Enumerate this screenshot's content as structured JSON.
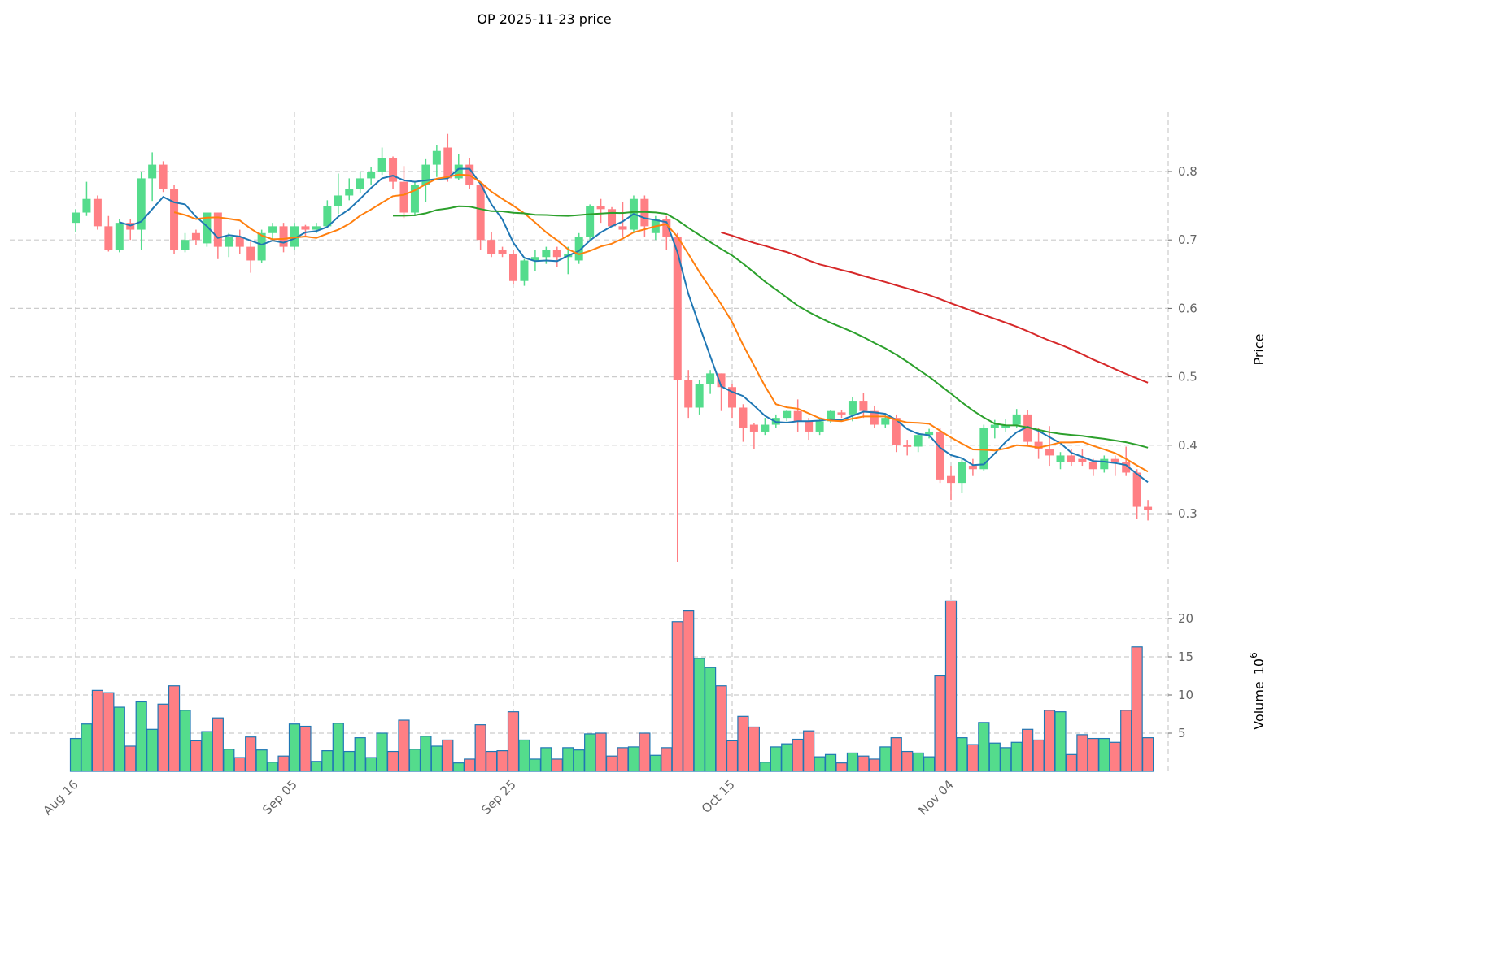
{
  "chart_data": {
    "type": "candlestick",
    "title": "OP  2025-11-23  price",
    "ylabel_price": "Price",
    "ylabel_volume": "Volume",
    "volume_exponent": "6",
    "price_ticks": [
      0.3,
      0.4,
      0.5,
      0.6,
      0.7,
      0.8
    ],
    "volume_ticks": [
      5,
      10,
      15,
      20
    ],
    "x_ticks": [
      {
        "index": 0,
        "label": "Aug 16"
      },
      {
        "index": 20,
        "label": "Sep 05"
      },
      {
        "index": 40,
        "label": "Sep 25"
      },
      {
        "index": 60,
        "label": "Oct 15"
      },
      {
        "index": 80,
        "label": "Nov 04"
      }
    ],
    "colors": {
      "up": "#54dc8c",
      "down": "#ff7f84",
      "vol_edge": "#1f77b4",
      "ma": [
        "#1f77b4",
        "#ff7f0e",
        "#2ca02c",
        "#d62728"
      ]
    },
    "ma_periods": [
      5,
      10,
      30,
      60
    ],
    "open": [
      0.725,
      0.74,
      0.76,
      0.72,
      0.685,
      0.725,
      0.715,
      0.79,
      0.81,
      0.775,
      0.685,
      0.71,
      0.695,
      0.74,
      0.69,
      0.705,
      0.69,
      0.67,
      0.71,
      0.72,
      0.69,
      0.72,
      0.715,
      0.72,
      0.75,
      0.765,
      0.775,
      0.79,
      0.8,
      0.82,
      0.785,
      0.74,
      0.78,
      0.81,
      0.835,
      0.79,
      0.81,
      0.78,
      0.7,
      0.685,
      0.68,
      0.64,
      0.67,
      0.675,
      0.685,
      0.675,
      0.67,
      0.705,
      0.75,
      0.745,
      0.72,
      0.715,
      0.76,
      0.71,
      0.73,
      0.705,
      0.495,
      0.455,
      0.49,
      0.505,
      0.485,
      0.455,
      0.43,
      0.42,
      0.43,
      0.44,
      0.45,
      0.435,
      0.42,
      0.435,
      0.448,
      0.445,
      0.465,
      0.45,
      0.43,
      0.44,
      0.4,
      0.398,
      0.415,
      0.42,
      0.355,
      0.345,
      0.37,
      0.365,
      0.425,
      0.425,
      0.43,
      0.445,
      0.405,
      0.395,
      0.375,
      0.385,
      0.38,
      0.375,
      0.365,
      0.38,
      0.375,
      0.36,
      0.31
    ],
    "high": [
      0.745,
      0.785,
      0.765,
      0.735,
      0.73,
      0.73,
      0.8,
      0.828,
      0.815,
      0.78,
      0.71,
      0.715,
      0.74,
      0.74,
      0.71,
      0.715,
      0.7,
      0.715,
      0.725,
      0.725,
      0.725,
      0.722,
      0.725,
      0.758,
      0.797,
      0.79,
      0.8,
      0.807,
      0.835,
      0.822,
      0.808,
      0.785,
      0.818,
      0.838,
      0.855,
      0.825,
      0.82,
      0.785,
      0.712,
      0.69,
      0.685,
      0.672,
      0.685,
      0.69,
      0.69,
      0.69,
      0.71,
      0.752,
      0.76,
      0.748,
      0.755,
      0.765,
      0.765,
      0.735,
      0.735,
      0.71,
      0.51,
      0.495,
      0.51,
      0.505,
      0.49,
      0.46,
      0.432,
      0.44,
      0.445,
      0.452,
      0.467,
      0.44,
      0.44,
      0.452,
      0.452,
      0.47,
      0.476,
      0.458,
      0.445,
      0.445,
      0.408,
      0.42,
      0.424,
      0.425,
      0.37,
      0.38,
      0.38,
      0.43,
      0.437,
      0.438,
      0.453,
      0.452,
      0.425,
      0.428,
      0.39,
      0.395,
      0.395,
      0.38,
      0.385,
      0.385,
      0.398,
      0.365,
      0.32
    ],
    "low": [
      0.712,
      0.735,
      0.715,
      0.683,
      0.682,
      0.7,
      0.685,
      0.757,
      0.77,
      0.68,
      0.682,
      0.692,
      0.69,
      0.672,
      0.675,
      0.68,
      0.652,
      0.667,
      0.7,
      0.682,
      0.685,
      0.705,
      0.71,
      0.717,
      0.738,
      0.758,
      0.768,
      0.78,
      0.795,
      0.775,
      0.732,
      0.735,
      0.755,
      0.792,
      0.785,
      0.788,
      0.775,
      0.685,
      0.675,
      0.675,
      0.635,
      0.633,
      0.655,
      0.665,
      0.66,
      0.65,
      0.665,
      0.7,
      0.725,
      0.72,
      0.705,
      0.712,
      0.705,
      0.7,
      0.685,
      0.23,
      0.44,
      0.445,
      0.475,
      0.45,
      0.44,
      0.405,
      0.395,
      0.415,
      0.425,
      0.435,
      0.42,
      0.408,
      0.415,
      0.432,
      0.44,
      0.435,
      0.44,
      0.425,
      0.425,
      0.39,
      0.385,
      0.39,
      0.41,
      0.345,
      0.32,
      0.33,
      0.355,
      0.362,
      0.41,
      0.42,
      0.425,
      0.4,
      0.38,
      0.37,
      0.365,
      0.37,
      0.37,
      0.355,
      0.36,
      0.355,
      0.355,
      0.292,
      0.29
    ],
    "close": [
      0.74,
      0.76,
      0.72,
      0.685,
      0.725,
      0.715,
      0.79,
      0.81,
      0.775,
      0.685,
      0.7,
      0.7,
      0.74,
      0.69,
      0.705,
      0.69,
      0.67,
      0.71,
      0.72,
      0.69,
      0.72,
      0.715,
      0.72,
      0.75,
      0.765,
      0.775,
      0.79,
      0.8,
      0.82,
      0.785,
      0.74,
      0.78,
      0.81,
      0.83,
      0.79,
      0.81,
      0.78,
      0.7,
      0.68,
      0.68,
      0.64,
      0.67,
      0.675,
      0.685,
      0.675,
      0.68,
      0.705,
      0.75,
      0.745,
      0.72,
      0.715,
      0.76,
      0.72,
      0.73,
      0.705,
      0.495,
      0.455,
      0.49,
      0.505,
      0.485,
      0.455,
      0.425,
      0.42,
      0.43,
      0.44,
      0.45,
      0.435,
      0.42,
      0.435,
      0.45,
      0.445,
      0.465,
      0.45,
      0.43,
      0.44,
      0.4,
      0.398,
      0.415,
      0.42,
      0.35,
      0.345,
      0.375,
      0.365,
      0.425,
      0.43,
      0.43,
      0.445,
      0.405,
      0.395,
      0.385,
      0.385,
      0.375,
      0.375,
      0.365,
      0.38,
      0.375,
      0.36,
      0.31,
      0.305
    ],
    "volume": [
      4.3,
      6.2,
      10.6,
      10.3,
      8.4,
      3.3,
      9.1,
      5.5,
      8.8,
      11.2,
      8.0,
      4.0,
      5.2,
      7.0,
      2.9,
      1.8,
      4.5,
      2.8,
      1.2,
      2.0,
      6.2,
      5.9,
      1.3,
      2.7,
      6.3,
      2.6,
      4.4,
      1.8,
      5.0,
      2.6,
      6.7,
      2.9,
      4.6,
      3.3,
      4.1,
      1.1,
      1.6,
      6.1,
      2.6,
      2.7,
      7.8,
      4.1,
      1.6,
      3.1,
      1.6,
      3.1,
      2.8,
      4.9,
      5.0,
      2.0,
      3.1,
      3.2,
      5.0,
      2.1,
      3.1,
      19.6,
      21.0,
      14.8,
      13.6,
      11.2,
      4.0,
      7.2,
      5.8,
      1.2,
      3.2,
      3.6,
      4.2,
      5.3,
      1.9,
      2.2,
      1.1,
      2.4,
      2.0,
      1.6,
      3.2,
      4.4,
      2.6,
      2.4,
      1.9,
      12.5,
      22.3,
      4.4,
      3.5,
      6.4,
      3.7,
      3.1,
      3.8,
      5.5,
      4.1,
      8.0,
      7.8,
      2.2,
      4.8,
      4.3,
      4.3,
      3.8,
      8.0,
      16.3,
      4.4
    ]
  }
}
